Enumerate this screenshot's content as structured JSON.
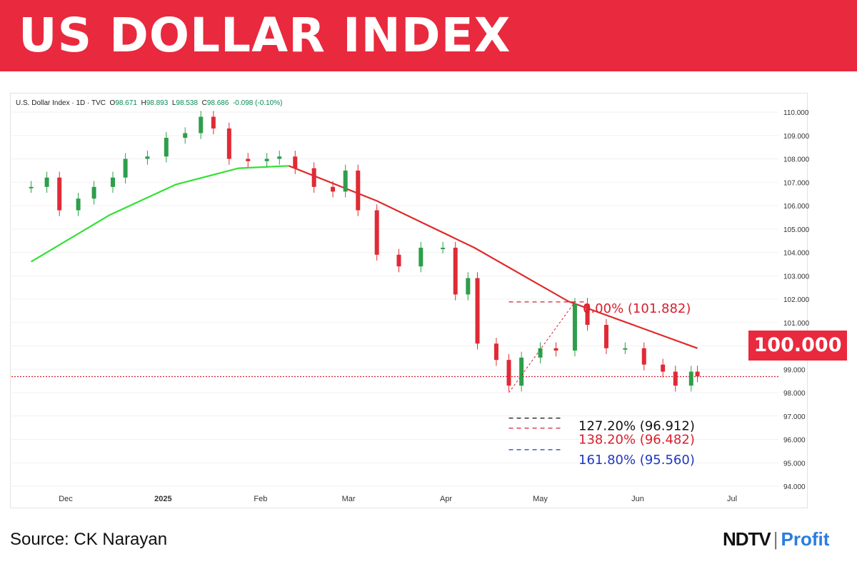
{
  "header": {
    "title": "US DOLLAR INDEX"
  },
  "legend": {
    "symbol": "U.S. Dollar Index · 1D · TVC",
    "open_label": "O",
    "open": "98.671",
    "high_label": "H",
    "high": "98.893",
    "low_label": "L",
    "low": "98.538",
    "close_label": "C",
    "close": "98.686",
    "change": "-0.098 (-0.10%)"
  },
  "price_tag": "100.000",
  "footer": {
    "source": "Source: CK Narayan",
    "brand_a": "NDTV",
    "brand_sep": "|",
    "brand_b": "Profit"
  },
  "colors": {
    "banner": "#e9293e",
    "up": "#2e9e4b",
    "down": "#e02a35",
    "ma_fast": "#33e033",
    "ma_slow": "#e02a2a",
    "fib_red": "#d71f2c",
    "fib_black": "#111111",
    "fib_blue": "#1f37c4"
  },
  "chart_data": {
    "type": "line",
    "title": "U.S. Dollar Index · 1D · TVC",
    "x_ticks": [
      "Dec",
      "2025",
      "Feb",
      "Mar",
      "Apr",
      "May",
      "Jun",
      "Jul"
    ],
    "y_ticks": [
      "110.000",
      "109.000",
      "108.000",
      "107.000",
      "106.000",
      "105.000",
      "104.000",
      "103.000",
      "102.000",
      "101.000",
      "100.000",
      "99.000",
      "98.000",
      "97.000",
      "96.000",
      "95.000",
      "94.000"
    ],
    "ylim": [
      94,
      110.4
    ],
    "current_price": 98.686,
    "series": [
      {
        "name": "",
        "kind": "close",
        "x": [
          "2024-11-20",
          "2024-11-25",
          "2024-11-29",
          "2024-12-05",
          "2024-12-10",
          "2024-12-16",
          "2024-12-20",
          "2024-12-27",
          "2025-01-02",
          "2025-01-08",
          "2025-01-13",
          "2025-01-17",
          "2025-01-22",
          "2025-01-28",
          "2025-02-03",
          "2025-02-07",
          "2025-02-12",
          "2025-02-18",
          "2025-02-24",
          "2025-02-28",
          "2025-03-04",
          "2025-03-10",
          "2025-03-17",
          "2025-03-24",
          "2025-03-31",
          "2025-04-04",
          "2025-04-08",
          "2025-04-11",
          "2025-04-17",
          "2025-04-21",
          "2025-04-25",
          "2025-05-01",
          "2025-05-06",
          "2025-05-12",
          "2025-05-16",
          "2025-05-22",
          "2025-05-28",
          "2025-06-03",
          "2025-06-09",
          "2025-06-13",
          "2025-06-18",
          "2025-06-20"
        ],
        "values": [
          106.8,
          107.2,
          105.8,
          106.3,
          106.8,
          107.2,
          108.0,
          108.1,
          108.9,
          109.1,
          109.8,
          109.3,
          108.0,
          107.9,
          108.0,
          108.1,
          107.6,
          106.8,
          106.6,
          107.5,
          105.8,
          103.9,
          103.4,
          104.2,
          104.2,
          102.2,
          102.9,
          100.1,
          99.4,
          98.3,
          99.5,
          99.9,
          99.8,
          101.8,
          100.9,
          99.9,
          99.9,
          99.2,
          98.9,
          98.3,
          98.9,
          98.7
        ]
      },
      {
        "name": "",
        "kind": "moving_average_fast",
        "x": [
          "2024-11-20",
          "2024-12-15",
          "2025-01-05",
          "2025-01-25",
          "2025-02-10"
        ],
        "values": [
          103.6,
          105.6,
          106.9,
          107.6,
          107.7
        ]
      },
      {
        "name": "",
        "kind": "moving_average_slow",
        "x": [
          "2025-02-10",
          "2025-03-10",
          "2025-04-10",
          "2025-05-10",
          "2025-06-20"
        ],
        "values": [
          107.7,
          106.2,
          104.2,
          101.9,
          99.9
        ]
      }
    ],
    "fibonacci": [
      {
        "label": "0.00% (101.882)",
        "value": 101.882
      },
      {
        "label": "127.20% (96.912)",
        "value": 96.912
      },
      {
        "label": "138.20% (96.482)",
        "value": 96.482
      },
      {
        "label": "161.80% (95.560)",
        "value": 95.56
      }
    ]
  }
}
